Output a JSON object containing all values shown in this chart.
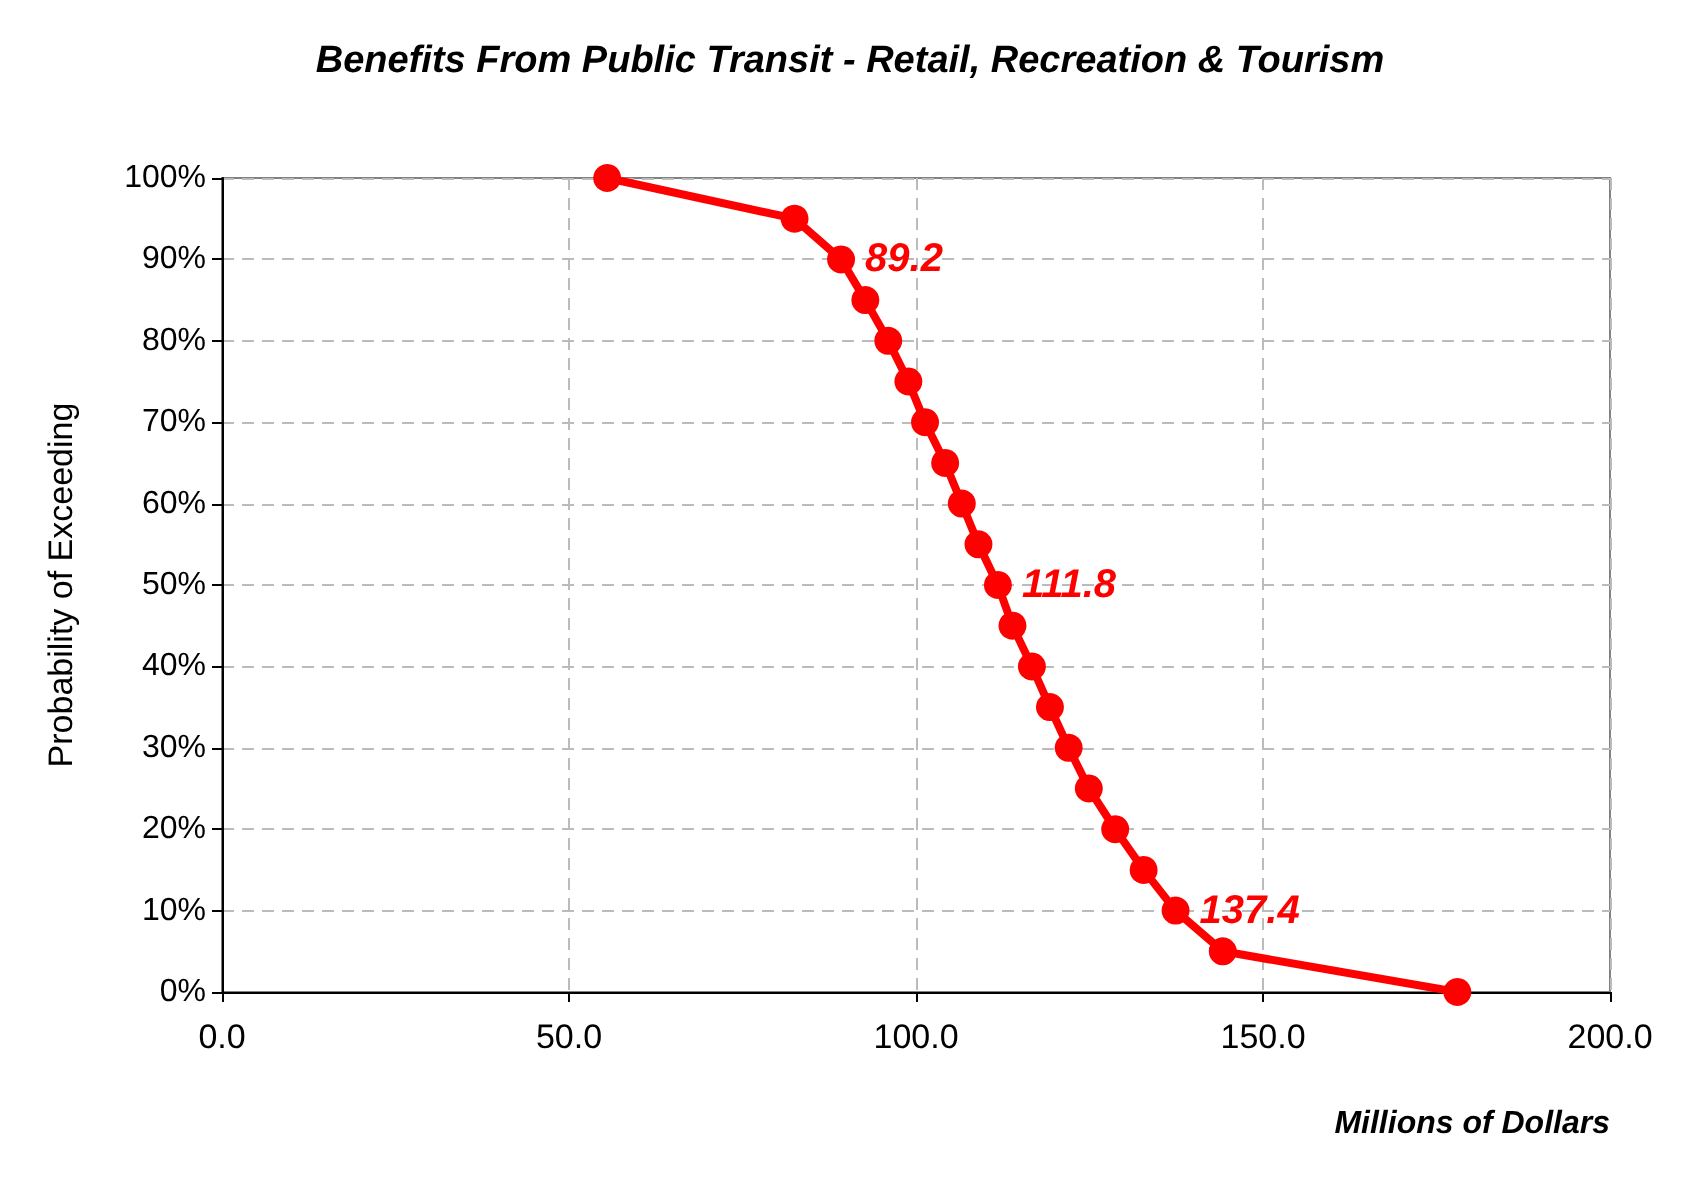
{
  "chart_data": {
    "type": "line",
    "title": "Benefits From Public Transit - Retail, Recreation & Tourism",
    "xlabel": "Millions of Dollars",
    "ylabel": "Probability of Exceeding",
    "xlim": [
      0,
      200
    ],
    "xticks": [
      {
        "value": 0,
        "label": "0.0"
      },
      {
        "value": 50,
        "label": "50.0"
      },
      {
        "value": 100,
        "label": "100.0"
      },
      {
        "value": 150,
        "label": "150.0"
      },
      {
        "value": 200,
        "label": "200.0"
      }
    ],
    "ylim": [
      0,
      100
    ],
    "yticks": [
      {
        "value": 0,
        "label": "0%"
      },
      {
        "value": 10,
        "label": "10%"
      },
      {
        "value": 20,
        "label": "20%"
      },
      {
        "value": 30,
        "label": "30%"
      },
      {
        "value": 40,
        "label": "40%"
      },
      {
        "value": 50,
        "label": "50%"
      },
      {
        "value": 60,
        "label": "60%"
      },
      {
        "value": 70,
        "label": "70%"
      },
      {
        "value": 80,
        "label": "80%"
      },
      {
        "value": 90,
        "label": "90%"
      },
      {
        "value": 100,
        "label": "100%"
      }
    ],
    "grid": true,
    "marker": "circle",
    "line_style": "solid",
    "annotations": [
      {
        "text": "89.2",
        "x": 89.2,
        "y": 90
      },
      {
        "text": "111.8",
        "x": 111.8,
        "y": 50
      },
      {
        "text": "137.4",
        "x": 137.4,
        "y": 10
      }
    ],
    "series": [
      {
        "color": "#ff0000",
        "x": [
          55.5,
          82.5,
          89.2,
          92.7,
          96.0,
          98.9,
          101.3,
          104.2,
          106.6,
          109.0,
          111.8,
          113.9,
          116.7,
          119.3,
          122.0,
          124.9,
          128.7,
          132.8,
          137.4,
          144.2,
          178.0
        ],
        "values": [
          100,
          95,
          90,
          85,
          80,
          75,
          70,
          65,
          60,
          55,
          50,
          45,
          40,
          35,
          30,
          25,
          20,
          15,
          10,
          5,
          0
        ]
      }
    ]
  }
}
